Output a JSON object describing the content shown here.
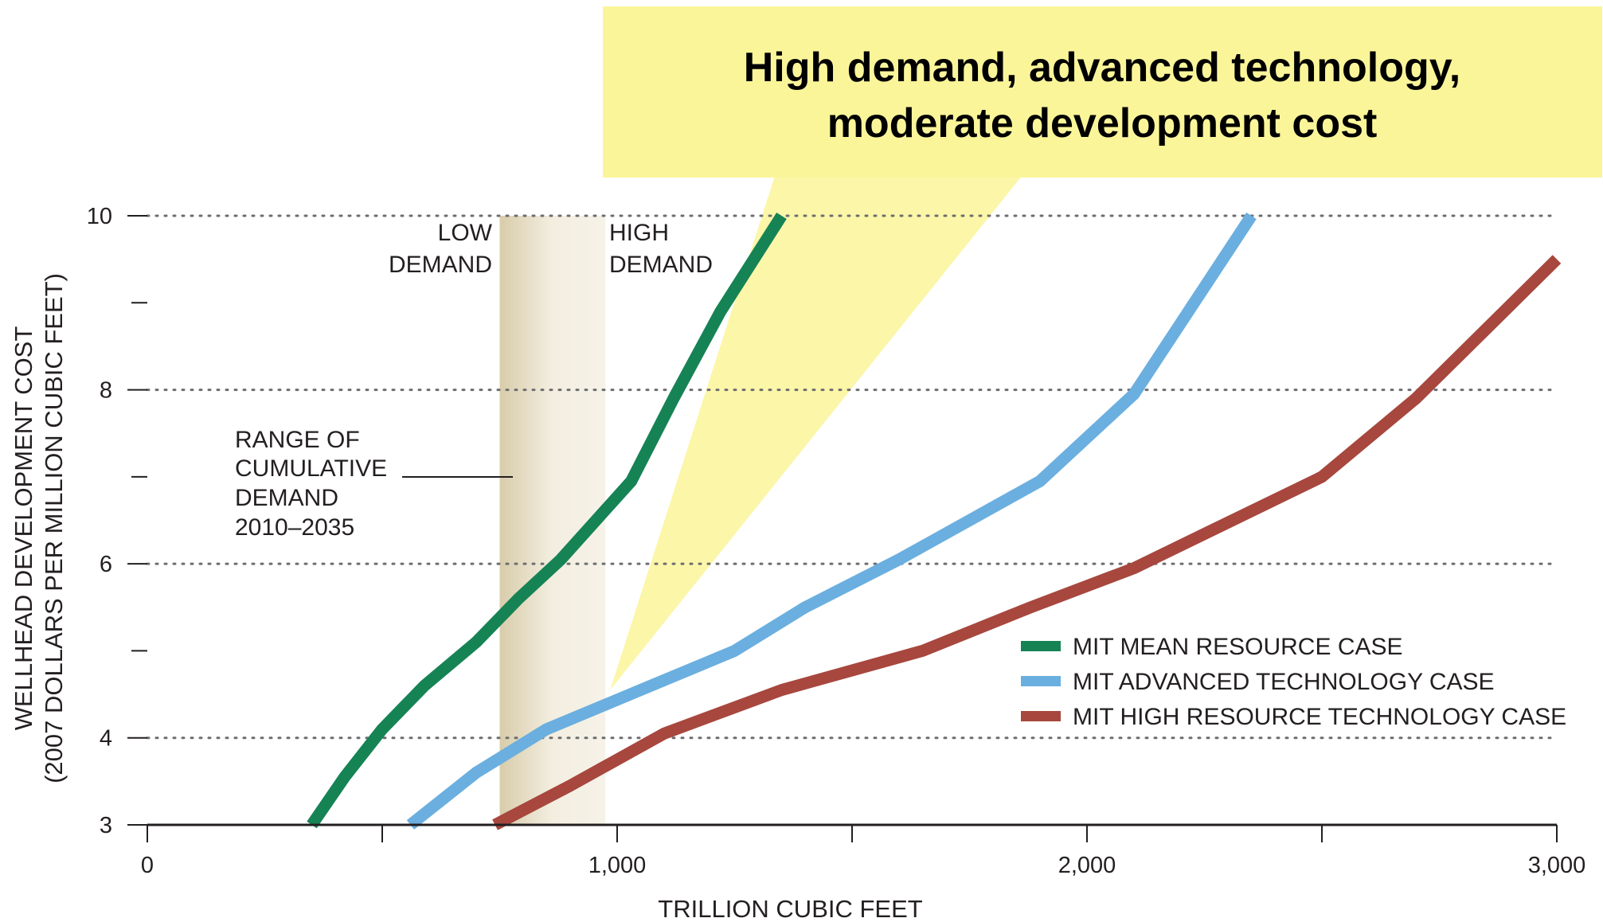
{
  "callout": {
    "line1": "High demand, advanced technology,",
    "line2": "moderate development cost",
    "color": "#fbf59a"
  },
  "chart_data": {
    "type": "line",
    "title": "",
    "xlabel": "TRILLION CUBIC FEET",
    "ylabel_line1": "WELLHEAD DEVELOPMENT COST",
    "ylabel_line2": "(2007 DOLLARS PER MILLION CUBIC FEET)",
    "xlim": [
      0,
      3000
    ],
    "ylim": [
      3,
      10
    ],
    "x_ticks": [
      0,
      1000,
      2000,
      3000
    ],
    "x_tick_labels": [
      "0",
      "1,000",
      "2,000",
      "3,000"
    ],
    "x_minor_ticks": [
      500,
      1500,
      2500
    ],
    "y_ticks": [
      3,
      4,
      6,
      8,
      10
    ],
    "y_tick_labels": [
      "3",
      "4",
      "6",
      "8",
      "10"
    ],
    "y_minor_ticks": [
      5,
      7,
      9
    ],
    "y_gridlines": [
      4,
      6,
      8,
      10
    ],
    "grid_style": "dotted",
    "legend_position": "lower-right",
    "demand_band": {
      "x_start": 750,
      "x_end": 975,
      "color": "#e8dfc6"
    },
    "annotations": {
      "low_demand": [
        "LOW",
        "DEMAND"
      ],
      "high_demand": [
        "HIGH",
        "DEMAND"
      ],
      "range": [
        "RANGE OF",
        "CUMULATIVE",
        "DEMAND",
        "2010–2035"
      ]
    },
    "series": [
      {
        "name": "MIT MEAN RESOURCE CASE",
        "color": "#168355",
        "x": [
          350,
          420,
          500,
          590,
          700,
          790,
          880,
          1030,
          1120,
          1220,
          1350
        ],
        "y": [
          3.0,
          3.55,
          4.1,
          4.6,
          5.1,
          5.6,
          6.05,
          6.95,
          7.9,
          8.9,
          10.0
        ]
      },
      {
        "name": "MIT ADVANCED TECHNOLOGY CASE",
        "color": "#6aafdf",
        "x": [
          560,
          700,
          850,
          1050,
          1250,
          1400,
          1600,
          1900,
          2100,
          2350
        ],
        "y": [
          3.0,
          3.6,
          4.1,
          4.55,
          5.0,
          5.5,
          6.05,
          6.95,
          7.95,
          10.0
        ]
      },
      {
        "name": "MIT HIGH RESOURCE TECHNOLOGY CASE",
        "color": "#a7473e",
        "x": [
          740,
          900,
          1100,
          1350,
          1650,
          1880,
          2100,
          2500,
          2700,
          3000
        ],
        "y": [
          3.0,
          3.45,
          4.05,
          4.55,
          5.0,
          5.5,
          5.95,
          7.0,
          7.9,
          9.5
        ]
      }
    ]
  }
}
